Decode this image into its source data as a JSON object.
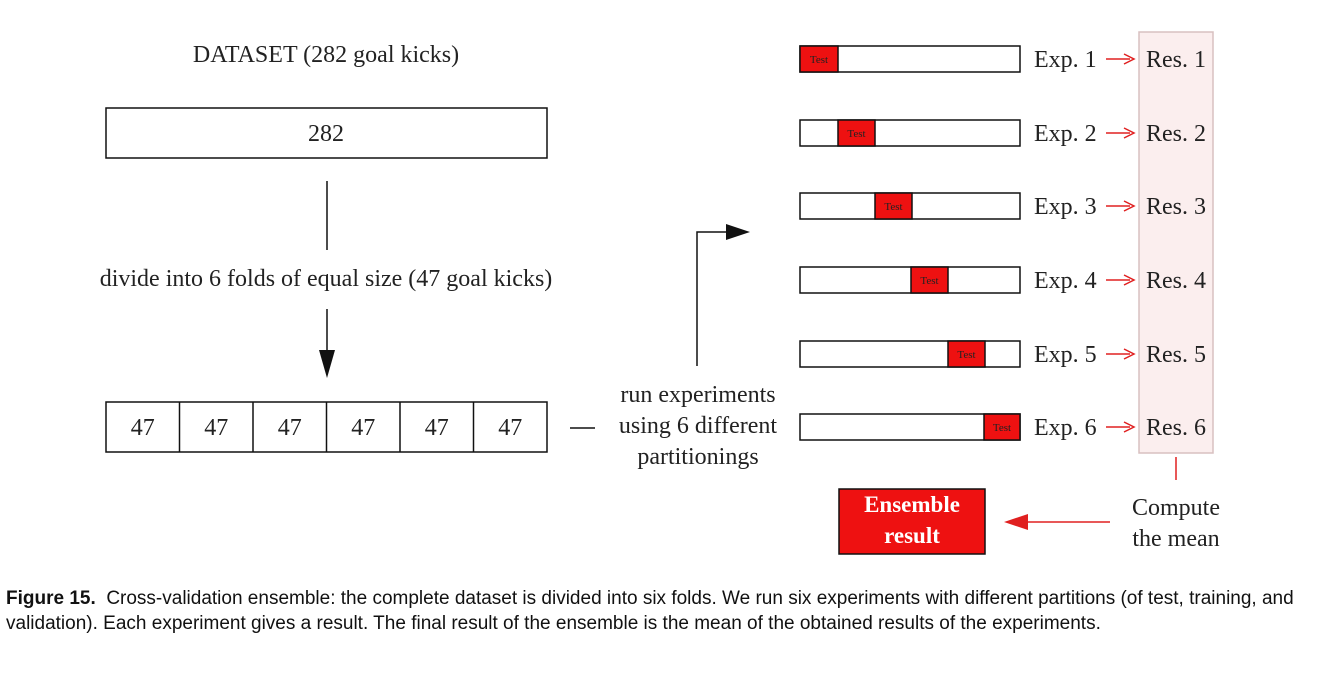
{
  "diagram": {
    "dataset_title": "DATASET (282 goal kicks)",
    "dataset_count": "282",
    "divide_label": "divide into 6 folds of equal size (47 goal kicks)",
    "folds": [
      "47",
      "47",
      "47",
      "47",
      "47",
      "47"
    ],
    "run_label": [
      "run experiments",
      "using 6 different",
      "partitionings"
    ],
    "test_label": "Test",
    "experiments": [
      {
        "exp": "Exp. 1",
        "res": "Res. 1"
      },
      {
        "exp": "Exp. 2",
        "res": "Res. 2"
      },
      {
        "exp": "Exp. 3",
        "res": "Res. 3"
      },
      {
        "exp": "Exp. 4",
        "res": "Res. 4"
      },
      {
        "exp": "Exp. 5",
        "res": "Res. 5"
      },
      {
        "exp": "Exp. 6",
        "res": "Res. 6"
      }
    ],
    "compute_label": [
      "Compute",
      "the mean"
    ],
    "ensemble_label": [
      "Ensemble",
      "result"
    ],
    "colors": {
      "test_red": "#ee1111",
      "arrow_red": "#e02020",
      "results_bg": "#fbeeee",
      "results_border": "#d8c0c0"
    }
  },
  "caption": {
    "label": "Figure 15.",
    "text": "Cross-validation ensemble: the complete dataset is divided into six folds. We run six experiments with different partitions (of test, training, and validation). Each experiment gives a result. The final result of the ensemble is the mean of the obtained results of the experiments."
  }
}
